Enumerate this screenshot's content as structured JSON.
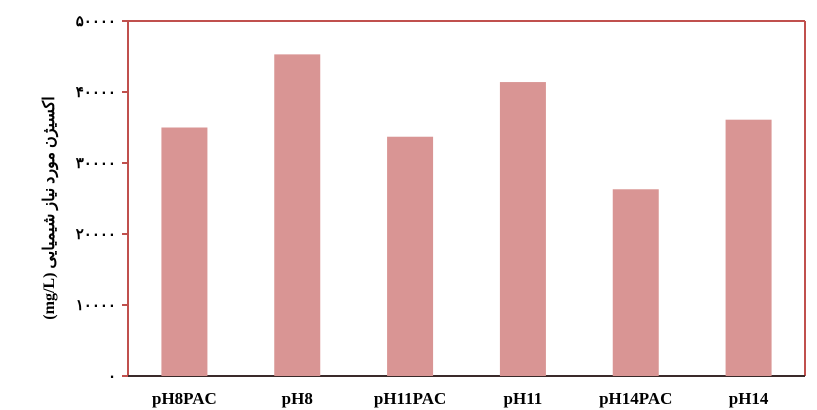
{
  "chart_data": {
    "type": "bar",
    "categories": [
      "pH8PAC",
      "pH8",
      "pH11PAC",
      "pH11",
      "pH14PAC",
      "pH14"
    ],
    "values": [
      35000,
      45300,
      33700,
      41400,
      26300,
      36100
    ],
    "ylabel": "اکسیژن مورد نیاز شیمیایی (mg/L)",
    "ylim": [
      0,
      50000
    ],
    "yticks": [
      0,
      10000,
      20000,
      30000,
      40000,
      50000
    ],
    "ytick_labels": [
      "۰",
      "۱۰۰۰۰",
      "۲۰۰۰۰",
      "۳۰۰۰۰",
      "۴۰۰۰۰",
      "۵۰۰۰۰"
    ],
    "grid": false,
    "bar_color": "#d99594",
    "frame_color": "#c0504d"
  }
}
